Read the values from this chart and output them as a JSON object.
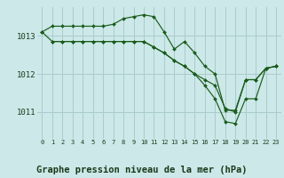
{
  "background_color": "#cce8e8",
  "grid_color": "#aacccc",
  "line_color": "#1a5c1a",
  "marker_color": "#1a5c1a",
  "xlabel": "Graphe pression niveau de la mer (hPa)",
  "xlabel_fontsize": 7.5,
  "ytick_values": [
    1011,
    1012,
    1013
  ],
  "ylim": [
    1010.3,
    1013.75
  ],
  "xlim": [
    -0.5,
    23.5
  ],
  "series1_x": [
    0,
    1,
    2,
    3,
    4,
    5,
    6,
    7,
    8,
    9,
    10,
    11,
    12,
    13,
    14,
    15,
    16,
    17,
    18,
    19,
    20,
    21,
    22,
    23
  ],
  "series1_y": [
    1013.1,
    1013.25,
    1013.25,
    1013.25,
    1013.25,
    1013.25,
    1013.25,
    1013.3,
    1013.45,
    1013.5,
    1013.55,
    1013.5,
    1013.1,
    1012.65,
    1012.85,
    1012.55,
    1012.2,
    1012.0,
    1011.05,
    1011.05,
    1011.85,
    1011.85,
    1012.15,
    1012.2
  ],
  "series2_x": [
    0,
    1,
    2,
    3,
    4,
    5,
    6,
    7,
    8,
    9,
    10,
    11,
    12,
    13,
    14,
    15,
    16,
    17,
    18,
    19,
    20,
    21,
    22,
    23
  ],
  "series2_y": [
    1013.1,
    1012.85,
    1012.85,
    1012.85,
    1012.85,
    1012.85,
    1012.85,
    1012.85,
    1012.85,
    1012.85,
    1012.85,
    1012.7,
    1012.55,
    1012.35,
    1012.2,
    1012.0,
    1011.85,
    1011.7,
    1011.1,
    1011.0,
    1011.85,
    1011.85,
    1012.15,
    1012.2
  ],
  "series3_x": [
    1,
    2,
    3,
    4,
    5,
    6,
    7,
    8,
    9,
    10,
    11,
    12,
    13,
    14,
    15,
    16,
    17,
    18,
    19,
    20,
    21,
    22,
    23
  ],
  "series3_y": [
    1012.85,
    1012.85,
    1012.85,
    1012.85,
    1012.85,
    1012.85,
    1012.85,
    1012.85,
    1012.85,
    1012.85,
    1012.7,
    1012.55,
    1012.35,
    1012.2,
    1012.0,
    1011.7,
    1011.35,
    1010.75,
    1010.7,
    1011.35,
    1011.35,
    1012.15,
    1012.2
  ]
}
